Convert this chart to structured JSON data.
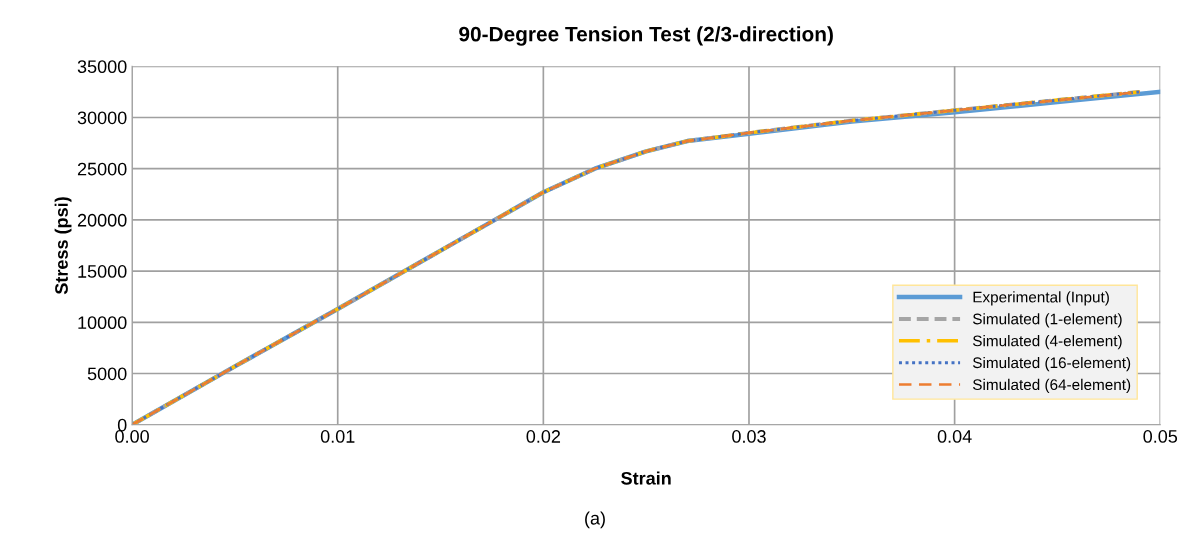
{
  "chart_data": {
    "type": "line",
    "title": "90-Degree Tension Test (2/3-direction)",
    "xlabel": "Strain",
    "ylabel": "Stress (psi)",
    "annotations": [
      "(a)"
    ],
    "xlim": [
      0,
      0.05
    ],
    "xticks": [
      {
        "value": 0,
        "label": "0.00"
      },
      0.01,
      0.02,
      0.03,
      0.04,
      0.05
    ],
    "ylim": [
      0,
      35000
    ],
    "yticks": [
      0,
      5000,
      10000,
      15000,
      20000,
      25000,
      30000,
      35000
    ],
    "grid": true,
    "legend": "bottom right",
    "marker": "none",
    "series": [
      {
        "name": "Experimental (Input)",
        "color": "#5b9bd5",
        "line_style": "solid",
        "x": [
          0,
          0.005,
          0.01,
          0.015,
          0.02,
          0.0225,
          0.025,
          0.027,
          0.03,
          0.035,
          0.04,
          0.045,
          0.05
        ],
        "values": [
          0,
          5700,
          11300,
          17000,
          22700,
          25000,
          26700,
          27700,
          28400,
          29600,
          30500,
          31500,
          32500
        ]
      },
      {
        "name": "Simulated (1-element)",
        "color": "#a5a5a5",
        "line_style": "dashed",
        "x": [
          0,
          0.005,
          0.01,
          0.015,
          0.02,
          0.0225,
          0.025,
          0.027,
          0.03,
          0.035,
          0.04,
          0.045,
          0.049
        ],
        "values": [
          0,
          5700,
          11300,
          17000,
          22700,
          25000,
          26700,
          27700,
          28500,
          29700,
          30700,
          31700,
          32500
        ]
      },
      {
        "name": "Simulated (4-element)",
        "color": "#ffc000",
        "line_style": "dashdot",
        "x": [
          0,
          0.005,
          0.01,
          0.015,
          0.02,
          0.0225,
          0.025,
          0.027,
          0.03,
          0.035,
          0.04,
          0.045,
          0.049
        ],
        "values": [
          0,
          5700,
          11300,
          17000,
          22700,
          25000,
          26700,
          27700,
          28500,
          29700,
          30700,
          31700,
          32500
        ]
      },
      {
        "name": "Simulated (16-element)",
        "color": "#4472c4",
        "line_style": "dotted",
        "x": [
          0,
          0.005,
          0.01,
          0.015,
          0.02,
          0.0225,
          0.025,
          0.027,
          0.03,
          0.035,
          0.04,
          0.045,
          0.049
        ],
        "values": [
          0,
          5700,
          11300,
          17000,
          22700,
          25000,
          26700,
          27700,
          28500,
          29700,
          30700,
          31700,
          32500
        ]
      },
      {
        "name": "Simulated (64-element)",
        "color": "#ed7d31",
        "line_style": "dashed_long",
        "x": [
          0,
          0.005,
          0.01,
          0.015,
          0.02,
          0.0225,
          0.025,
          0.027,
          0.03,
          0.035,
          0.04,
          0.045,
          0.049
        ],
        "values": [
          0,
          5700,
          11300,
          17000,
          22700,
          25000,
          26700,
          27700,
          28500,
          29700,
          30700,
          31700,
          32500
        ]
      }
    ]
  }
}
